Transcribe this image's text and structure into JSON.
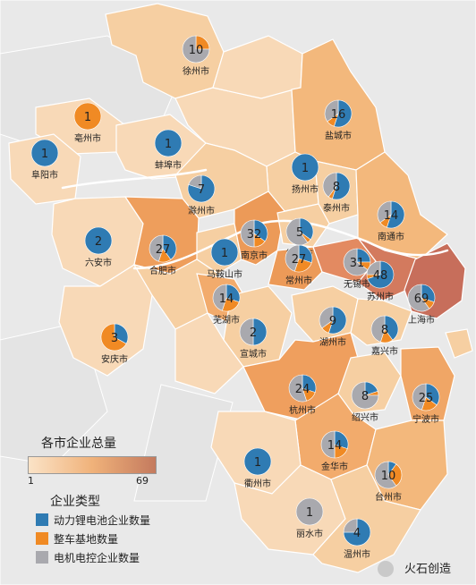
{
  "legend": {
    "total_title": "各市企业总量",
    "min_label": "1",
    "max_label": "69",
    "gradient_colors": [
      "#fbe3c7",
      "#f0b27a",
      "#c47a5e"
    ],
    "type_title": "企业类型",
    "types": [
      {
        "label": "动力锂电池企业数量",
        "color": "#2f7bb3"
      },
      {
        "label": "整车基地数量",
        "color": "#f08a24"
      },
      {
        "label": "电机电控企业数量",
        "color": "#a9a9ae"
      }
    ]
  },
  "watermark": {
    "text": "火石创造"
  },
  "cities": [
    {
      "id": "xuzhou",
      "name": "徐州市",
      "total": 10,
      "share": [
        0.0,
        0.25,
        0.75
      ]
    },
    {
      "id": "bozhou",
      "name": "亳州市",
      "total": 1,
      "share": [
        0.0,
        1.0,
        0.0
      ]
    },
    {
      "id": "yancheng",
      "name": "盐城市",
      "total": 16,
      "share": [
        0.55,
        0.1,
        0.35
      ]
    },
    {
      "id": "fuyang",
      "name": "阜阳市",
      "total": 1,
      "share": [
        1.0,
        0.0,
        0.0
      ]
    },
    {
      "id": "bengbu",
      "name": "蚌埠市",
      "total": 1,
      "share": [
        1.0,
        0.0,
        0.0
      ]
    },
    {
      "id": "yangzhou",
      "name": "扬州市",
      "total": 1,
      "share": [
        1.0,
        0.0,
        0.0
      ]
    },
    {
      "id": "taizhou_js",
      "name": "泰州市",
      "total": 8,
      "share": [
        0.55,
        0.05,
        0.4
      ]
    },
    {
      "id": "chuzhou",
      "name": "滁州市",
      "total": 7,
      "share": [
        0.8,
        0.0,
        0.2
      ]
    },
    {
      "id": "nantong",
      "name": "南通市",
      "total": 14,
      "share": [
        0.55,
        0.1,
        0.35
      ]
    },
    {
      "id": "luan",
      "name": "六安市",
      "total": 2,
      "share": [
        1.0,
        0.0,
        0.0
      ]
    },
    {
      "id": "hefei",
      "name": "合肥市",
      "total": 27,
      "share": [
        0.4,
        0.15,
        0.45
      ]
    },
    {
      "id": "maanshan",
      "name": "马鞍山市",
      "total": 1,
      "share": [
        1.0,
        0.0,
        0.0
      ]
    },
    {
      "id": "nanjing",
      "name": "南京市",
      "total": 32,
      "share": [
        0.35,
        0.15,
        0.5
      ]
    },
    {
      "id": "zhenjiang",
      "name": "镇江市",
      "total": 5,
      "share": [
        0.35,
        0.05,
        0.6
      ]
    },
    {
      "id": "changzhou",
      "name": "常州市",
      "total": 27,
      "share": [
        0.3,
        0.25,
        0.45
      ]
    },
    {
      "id": "wuxi",
      "name": "无锡市",
      "total": 31,
      "share": [
        0.25,
        0.1,
        0.65
      ]
    },
    {
      "id": "suzhou",
      "name": "苏州市",
      "total": 48,
      "share": [
        0.7,
        0.05,
        0.25
      ]
    },
    {
      "id": "shanghai",
      "name": "上海市",
      "total": 69,
      "share": [
        0.3,
        0.1,
        0.6
      ]
    },
    {
      "id": "wuhu",
      "name": "芜湖市",
      "total": 14,
      "share": [
        0.3,
        0.25,
        0.45
      ]
    },
    {
      "id": "anqing",
      "name": "安庆市",
      "total": 3,
      "share": [
        0.33,
        0.67,
        0.0
      ]
    },
    {
      "id": "xuancheng",
      "name": "宣城市",
      "total": 2,
      "share": [
        0.5,
        0.0,
        0.5
      ]
    },
    {
      "id": "huzhou",
      "name": "湖州市",
      "total": 9,
      "share": [
        0.55,
        0.1,
        0.35
      ]
    },
    {
      "id": "jiaxing",
      "name": "嘉兴市",
      "total": 8,
      "share": [
        0.4,
        0.15,
        0.45
      ]
    },
    {
      "id": "hangzhou",
      "name": "杭州市",
      "total": 24,
      "share": [
        0.3,
        0.15,
        0.55
      ]
    },
    {
      "id": "shaoxing",
      "name": "绍兴市",
      "total": 8,
      "share": [
        0.2,
        0.05,
        0.75
      ]
    },
    {
      "id": "ningbo",
      "name": "宁波市",
      "total": 25,
      "share": [
        0.35,
        0.2,
        0.45
      ]
    },
    {
      "id": "jinhua",
      "name": "金华市",
      "total": 14,
      "share": [
        0.3,
        0.2,
        0.5
      ]
    },
    {
      "id": "quzhou",
      "name": "衢州市",
      "total": 1,
      "share": [
        1.0,
        0.0,
        0.0
      ]
    },
    {
      "id": "taizhou_zj",
      "name": "台州市",
      "total": 10,
      "share": [
        0.1,
        0.3,
        0.6
      ]
    },
    {
      "id": "lishui",
      "name": "丽水市",
      "total": 1,
      "share": [
        0.0,
        0.0,
        1.0
      ]
    },
    {
      "id": "wenzhou",
      "name": "温州市",
      "total": 4,
      "share": [
        0.75,
        0.0,
        0.25
      ]
    }
  ]
}
